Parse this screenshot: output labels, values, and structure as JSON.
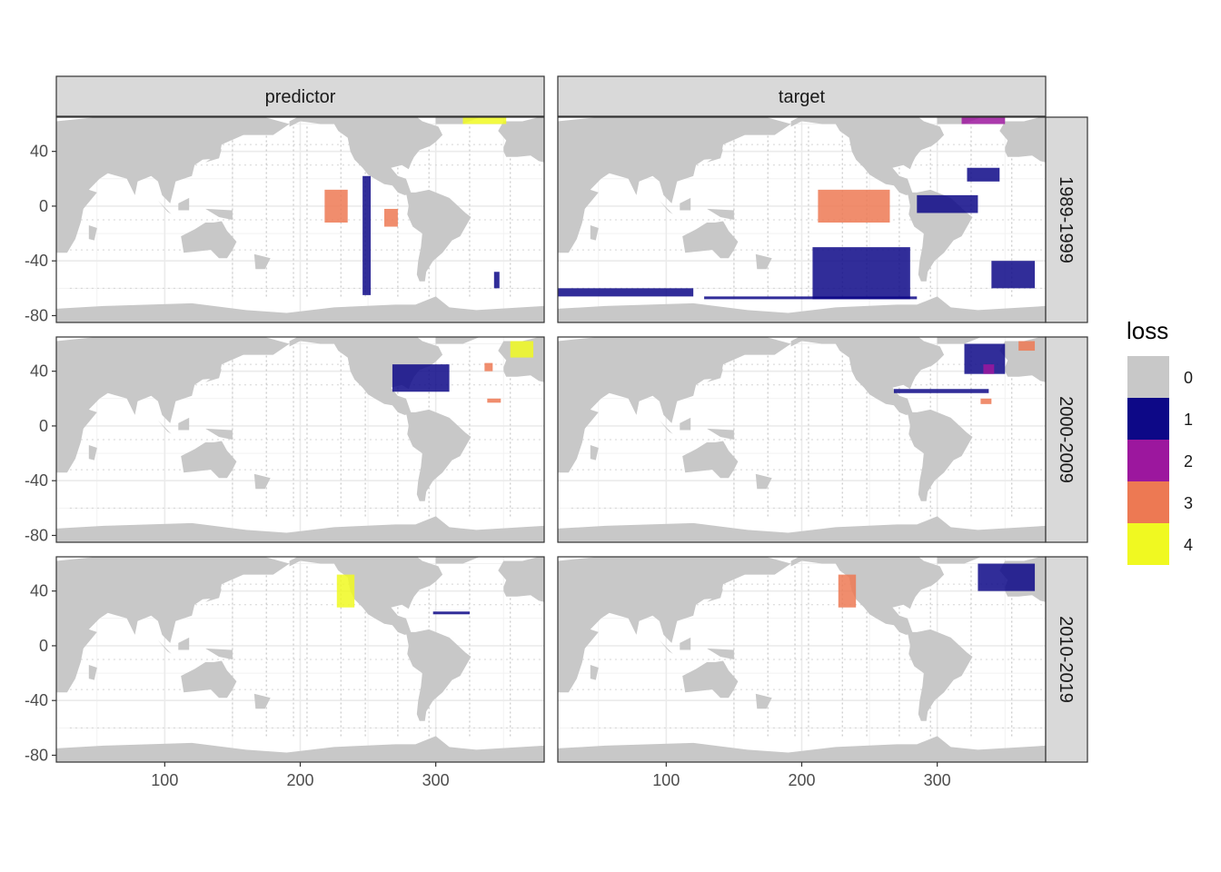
{
  "chart_data": {
    "type": "heatmap",
    "facet_columns": [
      "predictor",
      "target"
    ],
    "facet_rows": [
      "1989-1999",
      "2000-2009",
      "2010-2019"
    ],
    "x_ticks": [
      100,
      200,
      300
    ],
    "y_ticks": [
      40,
      0,
      -40,
      -80
    ],
    "xlim": [
      20,
      380
    ],
    "ylim": [
      -85,
      65
    ],
    "legend": {
      "title": "loss",
      "position": "right",
      "levels": [
        {
          "label": "0",
          "color": "#c8c8c8"
        },
        {
          "label": "1",
          "color": "#0d0887"
        },
        {
          "label": "2",
          "color": "#9c179e"
        },
        {
          "label": "3",
          "color": "#ed7953"
        },
        {
          "label": "4",
          "color": "#f0f921"
        }
      ]
    },
    "grid": true,
    "panels": [
      {
        "column": "predictor",
        "row": "1989-1999",
        "highlights": [
          {
            "loss": 3,
            "lon": [
              218,
              235
            ],
            "lat": [
              -12,
              12
            ]
          },
          {
            "loss": 3,
            "lon": [
              262,
              272
            ],
            "lat": [
              -15,
              -2
            ]
          },
          {
            "loss": 1,
            "lon": [
              246,
              252
            ],
            "lat": [
              -65,
              22
            ]
          },
          {
            "loss": 1,
            "lon": [
              343,
              347
            ],
            "lat": [
              -60,
              -48
            ]
          },
          {
            "loss": 4,
            "lon": [
              320,
              352
            ],
            "lat": [
              60,
              65
            ]
          }
        ]
      },
      {
        "column": "target",
        "row": "1989-1999",
        "highlights": [
          {
            "loss": 3,
            "lon": [
              212,
              265
            ],
            "lat": [
              -12,
              12
            ]
          },
          {
            "loss": 1,
            "lon": [
              208,
              280
            ],
            "lat": [
              -68,
              -30
            ]
          },
          {
            "loss": 1,
            "lon": [
              20,
              120
            ],
            "lat": [
              -66,
              -60
            ]
          },
          {
            "loss": 1,
            "lon": [
              128,
              285
            ],
            "lat": [
              -68,
              -66
            ]
          },
          {
            "loss": 1,
            "lon": [
              285,
              330
            ],
            "lat": [
              -5,
              8
            ]
          },
          {
            "loss": 1,
            "lon": [
              340,
              372
            ],
            "lat": [
              -60,
              -40
            ]
          },
          {
            "loss": 1,
            "lon": [
              322,
              346
            ],
            "lat": [
              18,
              28
            ]
          },
          {
            "loss": 2,
            "lon": [
              318,
              350
            ],
            "lat": [
              60,
              65
            ]
          }
        ]
      },
      {
        "column": "predictor",
        "row": "2000-2009",
        "highlights": [
          {
            "loss": 1,
            "lon": [
              268,
              310
            ],
            "lat": [
              25,
              45
            ]
          },
          {
            "loss": 3,
            "lon": [
              336,
              342
            ],
            "lat": [
              40,
              46
            ]
          },
          {
            "loss": 3,
            "lon": [
              338,
              348
            ],
            "lat": [
              17,
              20
            ]
          },
          {
            "loss": 4,
            "lon": [
              355,
              372
            ],
            "lat": [
              50,
              62
            ]
          }
        ]
      },
      {
        "column": "target",
        "row": "2000-2009",
        "highlights": [
          {
            "loss": 1,
            "lon": [
              268,
              338
            ],
            "lat": [
              24,
              27
            ]
          },
          {
            "loss": 1,
            "lon": [
              320,
              350
            ],
            "lat": [
              38,
              60
            ]
          },
          {
            "loss": 2,
            "lon": [
              334,
              342
            ],
            "lat": [
              38,
              45
            ]
          },
          {
            "loss": 3,
            "lon": [
              360,
              372
            ],
            "lat": [
              55,
              62
            ]
          },
          {
            "loss": 3,
            "lon": [
              332,
              340
            ],
            "lat": [
              16,
              20
            ]
          }
        ]
      },
      {
        "column": "predictor",
        "row": "2010-2019",
        "highlights": [
          {
            "loss": 4,
            "lon": [
              227,
              240
            ],
            "lat": [
              28,
              52
            ]
          },
          {
            "loss": 1,
            "lon": [
              298,
              325
            ],
            "lat": [
              23,
              25
            ]
          }
        ]
      },
      {
        "column": "target",
        "row": "2010-2019",
        "highlights": [
          {
            "loss": 3,
            "lon": [
              227,
              240
            ],
            "lat": [
              28,
              52
            ]
          },
          {
            "loss": 1,
            "lon": [
              330,
              372
            ],
            "lat": [
              40,
              60
            ]
          }
        ]
      }
    ]
  },
  "land": [
    [
      [
        20,
        62
      ],
      [
        60,
        66
      ],
      [
        120,
        68
      ],
      [
        170,
        66
      ],
      [
        192,
        60
      ],
      [
        180,
        52
      ],
      [
        158,
        52
      ],
      [
        142,
        45
      ],
      [
        140,
        35
      ],
      [
        128,
        34
      ],
      [
        122,
        30
      ],
      [
        120,
        22
      ],
      [
        108,
        18
      ],
      [
        106,
        10
      ],
      [
        104,
        2
      ],
      [
        98,
        8
      ],
      [
        95,
        18
      ],
      [
        90,
        22
      ],
      [
        80,
        18
      ],
      [
        78,
        8
      ],
      [
        72,
        20
      ],
      [
        58,
        24
      ],
      [
        52,
        20
      ],
      [
        44,
        12
      ],
      [
        50,
        10
      ],
      [
        40,
        -2
      ],
      [
        38,
        -12
      ],
      [
        34,
        -24
      ],
      [
        28,
        -34
      ],
      [
        20,
        -34
      ]
    ],
    [
      [
        112,
        -22
      ],
      [
        114,
        -34
      ],
      [
        124,
        -33
      ],
      [
        134,
        -32
      ],
      [
        140,
        -38
      ],
      [
        146,
        -38
      ],
      [
        150,
        -32
      ],
      [
        153,
        -26
      ],
      [
        146,
        -18
      ],
      [
        142,
        -11
      ],
      [
        136,
        -12
      ],
      [
        130,
        -12
      ],
      [
        122,
        -17
      ]
    ],
    [
      [
        44,
        -14
      ],
      [
        50,
        -16
      ],
      [
        48,
        -25
      ],
      [
        44,
        -24
      ]
    ],
    [
      [
        95,
        4
      ],
      [
        105,
        -6
      ],
      [
        102,
        -4
      ]
    ],
    [
      [
        110,
        2
      ],
      [
        118,
        6
      ],
      [
        118,
        -3
      ],
      [
        110,
        -3
      ]
    ],
    [
      [
        130,
        -2
      ],
      [
        150,
        -3
      ],
      [
        150,
        -10
      ],
      [
        140,
        -8
      ]
    ],
    [
      [
        166,
        -35
      ],
      [
        178,
        -38
      ],
      [
        174,
        -46
      ],
      [
        167,
        -46
      ]
    ],
    [
      [
        130,
        32
      ],
      [
        140,
        35
      ],
      [
        142,
        42
      ],
      [
        136,
        36
      ]
    ],
    [
      [
        192,
        58
      ],
      [
        200,
        62
      ],
      [
        215,
        60
      ],
      [
        225,
        60
      ],
      [
        228,
        55
      ],
      [
        235,
        50
      ],
      [
        237,
        40
      ],
      [
        240,
        34
      ],
      [
        246,
        28
      ],
      [
        250,
        23
      ],
      [
        255,
        20
      ],
      [
        262,
        16
      ],
      [
        268,
        15
      ],
      [
        272,
        10
      ],
      [
        277,
        8
      ],
      [
        282,
        9
      ],
      [
        278,
        20
      ],
      [
        272,
        22
      ],
      [
        267,
        28
      ],
      [
        275,
        30
      ],
      [
        280,
        27
      ],
      [
        282,
        32
      ],
      [
        284,
        36
      ],
      [
        288,
        41
      ],
      [
        296,
        44
      ],
      [
        300,
        47
      ],
      [
        305,
        52
      ],
      [
        302,
        58
      ],
      [
        290,
        62
      ],
      [
        285,
        66
      ],
      [
        200,
        66
      ],
      [
        192,
        62
      ]
    ],
    [
      [
        278,
        10
      ],
      [
        285,
        10
      ],
      [
        295,
        12
      ],
      [
        310,
        6
      ],
      [
        322,
        -5
      ],
      [
        326,
        -8
      ],
      [
        318,
        -22
      ],
      [
        312,
        -25
      ],
      [
        305,
        -34
      ],
      [
        298,
        -40
      ],
      [
        293,
        -48
      ],
      [
        292,
        -55
      ],
      [
        288,
        -55
      ],
      [
        286,
        -50
      ],
      [
        287,
        -40
      ],
      [
        289,
        -30
      ],
      [
        290,
        -20
      ],
      [
        283,
        -15
      ],
      [
        279,
        -6
      ],
      [
        280,
        0
      ]
    ],
    [
      [
        300,
        60
      ],
      [
        320,
        60
      ],
      [
        335,
        66
      ],
      [
        300,
        66
      ]
    ],
    [
      [
        350,
        40
      ],
      [
        352,
        36
      ],
      [
        360,
        36
      ],
      [
        370,
        37
      ],
      [
        376,
        33
      ],
      [
        380,
        32
      ],
      [
        380,
        66
      ],
      [
        364,
        62
      ],
      [
        350,
        62
      ],
      [
        346,
        55
      ],
      [
        352,
        48
      ],
      [
        350,
        43
      ]
    ],
    [
      [
        20,
        -81
      ],
      [
        380,
        -81
      ],
      [
        380,
        -86
      ],
      [
        20,
        -86
      ]
    ],
    [
      [
        20,
        -75
      ],
      [
        55,
        -73
      ],
      [
        120,
        -71
      ],
      [
        160,
        -76
      ],
      [
        190,
        -78
      ],
      [
        225,
        -74
      ],
      [
        270,
        -72
      ],
      [
        285,
        -72
      ],
      [
        300,
        -66
      ],
      [
        310,
        -74
      ],
      [
        330,
        -76
      ],
      [
        380,
        -73
      ],
      [
        380,
        -82
      ],
      [
        20,
        -82
      ]
    ]
  ]
}
